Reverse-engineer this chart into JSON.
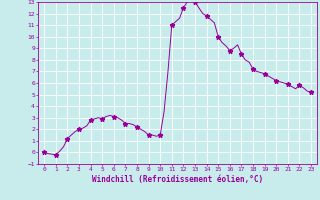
{
  "xlabel": "Windchill (Refroidissement éolien,°C)",
  "background_color": "#c8ecec",
  "grid_color": "#ffffff",
  "line_color": "#990099",
  "xlim": [
    -0.5,
    23.5
  ],
  "ylim": [
    -1,
    13
  ],
  "yticks": [
    -1,
    0,
    1,
    2,
    3,
    4,
    5,
    6,
    7,
    8,
    9,
    10,
    11,
    12,
    13
  ],
  "xticks": [
    0,
    1,
    2,
    3,
    4,
    5,
    6,
    7,
    8,
    9,
    10,
    11,
    12,
    13,
    14,
    15,
    16,
    17,
    18,
    19,
    20,
    21,
    22,
    23
  ],
  "hours": [
    0,
    0.33,
    0.67,
    1,
    1.33,
    1.67,
    2,
    2.33,
    2.67,
    3,
    3.33,
    3.67,
    4,
    4.33,
    4.67,
    5,
    5.33,
    5.67,
    6,
    6.33,
    6.67,
    7,
    7.33,
    7.67,
    8,
    8.33,
    8.67,
    9,
    9.33,
    9.67,
    10,
    10.33,
    10.67,
    11,
    11.33,
    11.67,
    12,
    12.33,
    12.67,
    13,
    13.33,
    13.67,
    14,
    14.33,
    14.67,
    15,
    15.33,
    15.67,
    16,
    16.33,
    16.67,
    17,
    17.33,
    17.67,
    18,
    18.33,
    18.67,
    19,
    19.33,
    19.67,
    20,
    20.33,
    20.67,
    21,
    21.33,
    21.67,
    22,
    22.33,
    22.67,
    23
  ],
  "values": [
    0,
    -0.1,
    -0.15,
    -0.2,
    0.1,
    0.5,
    1.2,
    1.5,
    1.8,
    2.0,
    2.1,
    2.3,
    2.8,
    2.9,
    3.0,
    2.9,
    3.1,
    3.2,
    3.1,
    3.0,
    2.8,
    2.5,
    2.5,
    2.4,
    2.2,
    2.0,
    1.8,
    1.5,
    1.5,
    1.4,
    1.5,
    3.5,
    7.0,
    11.0,
    11.3,
    11.6,
    12.5,
    13.0,
    13.2,
    13.0,
    12.5,
    12.0,
    11.8,
    11.5,
    11.2,
    10.0,
    9.5,
    9.2,
    8.8,
    9.0,
    9.3,
    8.5,
    8.0,
    7.8,
    7.2,
    7.0,
    6.9,
    6.8,
    6.6,
    6.4,
    6.2,
    6.1,
    6.0,
    5.9,
    5.7,
    5.5,
    5.8,
    5.6,
    5.3,
    5.2
  ],
  "marker_hours": [
    0,
    1,
    2,
    3,
    4,
    5,
    6,
    7,
    8,
    9,
    10,
    11,
    12,
    13,
    14,
    15,
    16,
    17,
    18,
    19,
    20,
    21,
    22,
    23
  ],
  "marker_values": [
    0,
    -0.2,
    1.2,
    2.0,
    2.8,
    2.9,
    3.1,
    2.5,
    2.2,
    1.5,
    1.5,
    11.0,
    12.5,
    13.0,
    11.8,
    10.0,
    8.8,
    8.5,
    7.2,
    6.8,
    6.2,
    5.9,
    5.8,
    5.2
  ]
}
